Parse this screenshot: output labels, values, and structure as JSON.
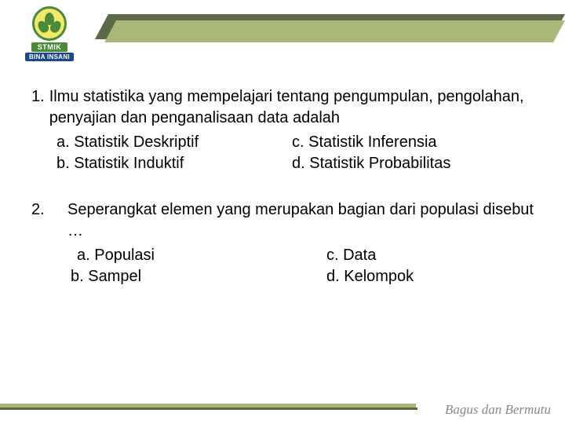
{
  "logo": {
    "line1": "STMIK",
    "line2": "BINA INSANI"
  },
  "q1": {
    "number": "1.",
    "prompt": "Ilmu statistika yang mempelajari tentang pengumpulan, pengolahan, penyajian dan penganalisaan data adalah",
    "opts": {
      "a": "a. Statistik Deskriptif",
      "b": "b. Statistik Induktif",
      "c": "c. Statistik Inferensia",
      "d": "d. Statistik Probabilitas"
    }
  },
  "q2": {
    "number": "2.",
    "prompt": "Seperangkat elemen yang merupakan bagian dari populasi disebut …",
    "opts": {
      "a": "a. Populasi",
      "b": "b. Sampel",
      "c": "c. Data",
      "d": "d. Kelompok"
    }
  },
  "footer": {
    "tagline": "Bagus dan Bermutu"
  }
}
